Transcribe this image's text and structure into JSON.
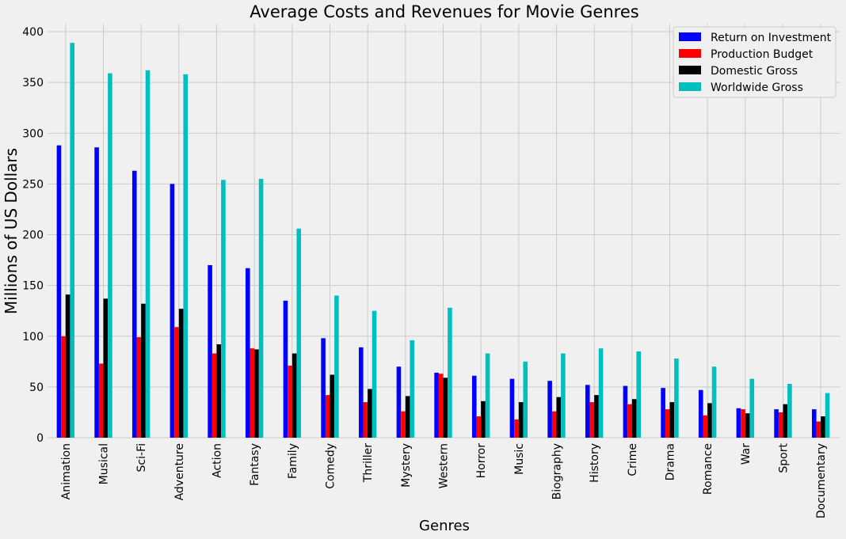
{
  "chart_data": {
    "type": "bar",
    "title": "Average Costs and Revenues for Movie Genres",
    "xlabel": "Genres",
    "ylabel": "Millions of US Dollars",
    "ylim": [
      0,
      410
    ],
    "yticks": [
      0,
      50,
      100,
      150,
      200,
      250,
      300,
      350,
      400
    ],
    "grid": true,
    "legend_position": "top-right",
    "categories": [
      "Animation",
      "Musical",
      "Sci-Fi",
      "Adventure",
      "Action",
      "Fantasy",
      "Family",
      "Comedy",
      "Thriller",
      "Mystery",
      "Western",
      "Horror",
      "Music",
      "Biography",
      "History",
      "Crime",
      "Drama",
      "Romance",
      "War",
      "Sport",
      "Documentary"
    ],
    "series": [
      {
        "name": "Return on Investment",
        "color": "#0000ff",
        "values": [
          288,
          286,
          263,
          250,
          170,
          167,
          135,
          98,
          89,
          70,
          64,
          61,
          58,
          56,
          52,
          51,
          49,
          47,
          29,
          28,
          28
        ]
      },
      {
        "name": "Production Budget",
        "color": "#ff0000",
        "values": [
          100,
          73,
          99,
          109,
          83,
          88,
          71,
          42,
          35,
          26,
          63,
          21,
          18,
          26,
          35,
          33,
          28,
          22,
          28,
          25,
          16
        ]
      },
      {
        "name": "Domestic Gross",
        "color": "#000000",
        "values": [
          141,
          137,
          132,
          127,
          92,
          87,
          83,
          62,
          48,
          41,
          59,
          36,
          35,
          40,
          42,
          38,
          35,
          34,
          24,
          33,
          21
        ]
      },
      {
        "name": "Worldwide Gross",
        "color": "#00bfbf",
        "values": [
          389,
          359,
          362,
          358,
          254,
          255,
          206,
          140,
          125,
          96,
          128,
          83,
          75,
          83,
          88,
          85,
          78,
          70,
          58,
          53,
          44
        ]
      }
    ]
  }
}
